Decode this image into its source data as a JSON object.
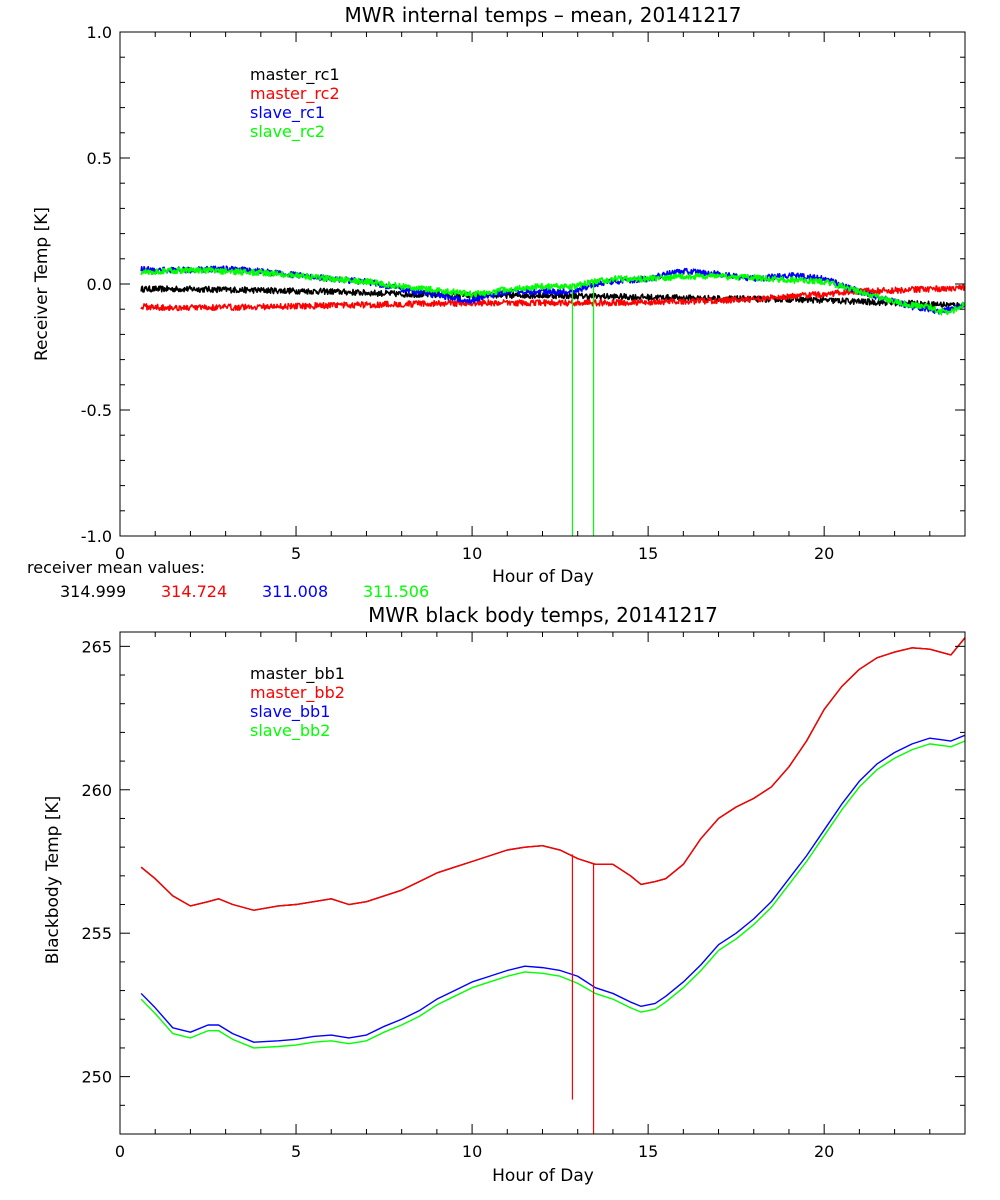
{
  "chart_data": [
    {
      "type": "line",
      "title": "MWR internal temps – mean, 20141217",
      "xlabel": "Hour of Day",
      "ylabel": "Receiver Temp [K]",
      "xlim": [
        0,
        24
      ],
      "ylim": [
        -1.0,
        1.0
      ],
      "xticks": [
        0,
        5,
        10,
        15,
        20
      ],
      "yticks": [
        -1.0,
        -0.5,
        0.0,
        0.5,
        1.0
      ],
      "ytick_labels": [
        "-1.0",
        "-0.5",
        "0.0",
        "0.5",
        "1.0"
      ],
      "legend_position": "top-left",
      "noise_amplitude": 0.012,
      "series": [
        {
          "name": "master_rc1",
          "color": "#000000",
          "x": [
            0.6,
            2,
            4,
            6,
            8,
            10,
            12,
            14,
            16,
            18,
            19,
            20,
            21,
            22,
            23,
            24
          ],
          "y": [
            -0.02,
            -0.02,
            -0.025,
            -0.03,
            -0.04,
            -0.045,
            -0.045,
            -0.05,
            -0.055,
            -0.06,
            -0.06,
            -0.065,
            -0.07,
            -0.075,
            -0.08,
            -0.085
          ]
        },
        {
          "name": "master_rc2",
          "color": "#ff0000",
          "x": [
            0.6,
            2,
            4,
            6,
            8,
            10,
            12,
            14,
            16,
            18,
            19,
            20,
            21,
            22,
            23,
            24
          ],
          "y": [
            -0.09,
            -0.095,
            -0.09,
            -0.085,
            -0.08,
            -0.075,
            -0.075,
            -0.075,
            -0.07,
            -0.06,
            -0.05,
            -0.04,
            -0.03,
            -0.025,
            -0.02,
            -0.015
          ]
        },
        {
          "name": "slave_rc1",
          "color": "#0000ff",
          "x": [
            0.6,
            1,
            2,
            3,
            4,
            5,
            6,
            7,
            8,
            9,
            10,
            10.5,
            11,
            12,
            12.8,
            13.5,
            14,
            15,
            15.5,
            16,
            17,
            18,
            19,
            20,
            21,
            22,
            22.5,
            23,
            23.3,
            23.6,
            24
          ],
          "y": [
            0.06,
            0.055,
            0.055,
            0.06,
            0.05,
            0.035,
            0.02,
            0.01,
            -0.02,
            -0.045,
            -0.065,
            -0.045,
            -0.03,
            -0.03,
            -0.03,
            0.0,
            0.01,
            0.02,
            0.04,
            0.05,
            0.04,
            0.02,
            0.035,
            0.02,
            -0.03,
            -0.07,
            -0.09,
            -0.1,
            -0.11,
            -0.1,
            -0.08
          ]
        },
        {
          "name": "slave_rc2",
          "color": "#00ff00",
          "x": [
            0.6,
            1,
            2,
            3,
            4,
            5,
            6,
            7,
            8,
            9,
            10,
            10.5,
            11,
            12,
            12.8,
            13.5,
            14,
            15,
            15.5,
            16,
            17,
            18,
            19,
            20,
            21,
            22,
            22.5,
            23,
            23.3,
            23.6,
            24
          ],
          "y": [
            0.045,
            0.05,
            0.055,
            0.05,
            0.045,
            0.035,
            0.02,
            0.01,
            -0.01,
            -0.025,
            -0.04,
            -0.035,
            -0.02,
            -0.01,
            -0.01,
            0.01,
            0.02,
            0.02,
            0.025,
            0.03,
            0.03,
            0.025,
            0.015,
            0.01,
            -0.03,
            -0.07,
            -0.085,
            -0.09,
            -0.11,
            -0.11,
            -0.08
          ]
        }
      ],
      "spikes": [
        {
          "series": "slave_rc2",
          "color": "#00ff00",
          "x": 12.85,
          "from": -0.02,
          "to": -1.0
        },
        {
          "series": "slave_rc2",
          "color": "#00ff00",
          "x": 13.45,
          "from": 0.0,
          "to": -1.0
        }
      ]
    },
    {
      "type": "line",
      "title": "MWR black body temps, 20141217",
      "xlabel": "Hour of Day",
      "ylabel": "Blackbody Temp [K]",
      "xlim": [
        0,
        24
      ],
      "ylim": [
        248,
        265.5
      ],
      "xticks": [
        0,
        5,
        10,
        15,
        20
      ],
      "yticks": [
        250,
        255,
        260,
        265
      ],
      "ytick_labels": [
        "250",
        "255",
        "260",
        "265"
      ],
      "legend_position": "top-left",
      "series": [
        {
          "name": "master_bb1",
          "color": "#000000",
          "x": [
            0.6,
            1.0,
            1.5,
            2.0,
            2.5,
            2.8,
            3.2,
            3.8,
            4.5,
            5.0,
            5.5,
            6.0,
            6.5,
            7.0,
            7.5,
            8.0,
            8.5,
            9.0,
            9.5,
            10.0,
            10.5,
            11.0,
            11.5,
            12.0,
            12.5,
            13.0,
            13.5,
            14.0,
            14.5,
            14.8,
            15.2,
            15.5,
            16.0,
            16.5,
            17.0,
            17.5,
            18.0,
            18.5,
            19.0,
            19.5,
            20.0,
            20.5,
            21.0,
            21.5,
            22.0,
            22.5,
            23.0,
            23.3,
            23.6,
            24.0
          ],
          "y": [
            257.3,
            256.9,
            256.3,
            255.95,
            256.1,
            256.2,
            256.0,
            255.8,
            255.95,
            256.0,
            256.1,
            256.2,
            256.0,
            256.1,
            256.3,
            256.5,
            256.8,
            257.1,
            257.3,
            257.5,
            257.7,
            257.9,
            258.0,
            258.05,
            257.9,
            257.6,
            257.4,
            257.4,
            257.0,
            256.7,
            256.8,
            256.9,
            257.4,
            258.3,
            259.0,
            259.4,
            259.7,
            260.1,
            260.8,
            261.7,
            262.8,
            263.6,
            264.2,
            264.6,
            264.8,
            264.95,
            264.9,
            264.8,
            264.7,
            265.3
          ]
        },
        {
          "name": "master_bb2",
          "color": "#ff0000",
          "x": [
            0.6,
            1.0,
            1.5,
            2.0,
            2.5,
            2.8,
            3.2,
            3.8,
            4.5,
            5.0,
            5.5,
            6.0,
            6.5,
            7.0,
            7.5,
            8.0,
            8.5,
            9.0,
            9.5,
            10.0,
            10.5,
            11.0,
            11.5,
            12.0,
            12.5,
            13.0,
            13.5,
            14.0,
            14.5,
            14.8,
            15.2,
            15.5,
            16.0,
            16.5,
            17.0,
            17.5,
            18.0,
            18.5,
            19.0,
            19.5,
            20.0,
            20.5,
            21.0,
            21.5,
            22.0,
            22.5,
            23.0,
            23.3,
            23.6,
            24.0
          ],
          "y": [
            257.3,
            256.9,
            256.3,
            255.95,
            256.1,
            256.2,
            256.0,
            255.8,
            255.95,
            256.0,
            256.1,
            256.2,
            256.0,
            256.1,
            256.3,
            256.5,
            256.8,
            257.1,
            257.3,
            257.5,
            257.7,
            257.9,
            258.0,
            258.05,
            257.9,
            257.6,
            257.4,
            257.4,
            257.0,
            256.7,
            256.8,
            256.9,
            257.4,
            258.3,
            259.0,
            259.4,
            259.7,
            260.1,
            260.8,
            261.7,
            262.8,
            263.6,
            264.2,
            264.6,
            264.8,
            264.95,
            264.9,
            264.8,
            264.7,
            265.3
          ]
        },
        {
          "name": "slave_bb1",
          "color": "#0000ff",
          "x": [
            0.6,
            1.0,
            1.5,
            2.0,
            2.5,
            2.8,
            3.2,
            3.8,
            4.5,
            5.0,
            5.5,
            6.0,
            6.5,
            7.0,
            7.5,
            8.0,
            8.5,
            9.0,
            9.5,
            10.0,
            10.5,
            11.0,
            11.5,
            12.0,
            12.5,
            13.0,
            13.5,
            14.0,
            14.5,
            14.8,
            15.2,
            15.5,
            16.0,
            16.5,
            17.0,
            17.5,
            18.0,
            18.5,
            19.0,
            19.5,
            20.0,
            20.5,
            21.0,
            21.5,
            22.0,
            22.5,
            23.0,
            23.3,
            23.6,
            24.0
          ],
          "y": [
            252.9,
            252.4,
            251.7,
            251.55,
            251.8,
            251.8,
            251.5,
            251.2,
            251.25,
            251.3,
            251.4,
            251.45,
            251.35,
            251.45,
            251.75,
            252.0,
            252.3,
            252.7,
            253.0,
            253.3,
            253.5,
            253.7,
            253.85,
            253.8,
            253.7,
            253.5,
            253.1,
            252.9,
            252.6,
            252.45,
            252.55,
            252.8,
            253.3,
            253.9,
            254.6,
            255.0,
            255.5,
            256.1,
            256.9,
            257.7,
            258.6,
            259.5,
            260.3,
            260.9,
            261.3,
            261.6,
            261.8,
            261.75,
            261.7,
            261.9
          ]
        },
        {
          "name": "slave_bb2",
          "color": "#00ff00",
          "x": [
            0.6,
            1.0,
            1.5,
            2.0,
            2.5,
            2.8,
            3.2,
            3.8,
            4.5,
            5.0,
            5.5,
            6.0,
            6.5,
            7.0,
            7.5,
            8.0,
            8.5,
            9.0,
            9.5,
            10.0,
            10.5,
            11.0,
            11.5,
            12.0,
            12.5,
            13.0,
            13.5,
            14.0,
            14.5,
            14.8,
            15.2,
            15.5,
            16.0,
            16.5,
            17.0,
            17.5,
            18.0,
            18.5,
            19.0,
            19.5,
            20.0,
            20.5,
            21.0,
            21.5,
            22.0,
            22.5,
            23.0,
            23.3,
            23.6,
            24.0
          ],
          "y": [
            252.7,
            252.2,
            251.5,
            251.35,
            251.6,
            251.6,
            251.3,
            251.0,
            251.05,
            251.1,
            251.2,
            251.25,
            251.15,
            251.25,
            251.55,
            251.8,
            252.1,
            252.5,
            252.8,
            253.1,
            253.3,
            253.5,
            253.65,
            253.6,
            253.5,
            253.25,
            252.9,
            252.7,
            252.4,
            252.25,
            252.35,
            252.6,
            253.1,
            253.7,
            254.4,
            254.8,
            255.3,
            255.9,
            256.7,
            257.5,
            258.4,
            259.3,
            260.1,
            260.7,
            261.1,
            261.4,
            261.6,
            261.55,
            261.5,
            261.7
          ]
        }
      ],
      "spikes": [
        {
          "series": "master_bb2",
          "color": "#ff0000",
          "x": 12.85,
          "from": 257.75,
          "to": 249.2
        },
        {
          "series": "master_bb2",
          "color": "#ff0000",
          "x": 13.45,
          "from": 257.45,
          "to": 248.0
        }
      ]
    }
  ],
  "receiver_means": {
    "label": "receiver mean values:",
    "values": [
      {
        "text": "314.999",
        "color": "#000000"
      },
      {
        "text": "314.724",
        "color": "#ff0000"
      },
      {
        "text": "311.008",
        "color": "#0000ff"
      },
      {
        "text": "311.506",
        "color": "#00ff00"
      }
    ]
  }
}
